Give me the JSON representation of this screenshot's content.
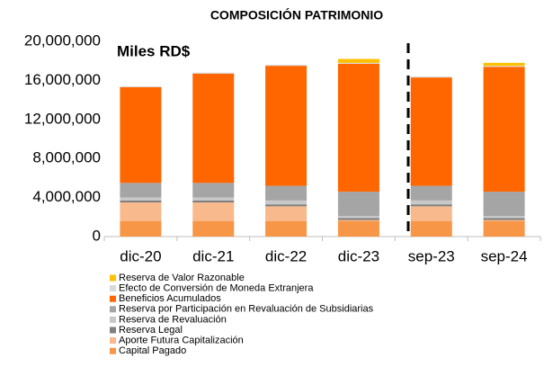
{
  "chart_data": {
    "type": "stacked_bar",
    "title": "COMPOSICIÓN PATRIMONIO",
    "annotation": "Miles RD$",
    "categories": [
      "dic-20",
      "dic-21",
      "dic-22",
      "dic-23",
      "sep-23",
      "sep-24"
    ],
    "series": [
      {
        "name": "Capital Pagado",
        "color": "#f79646",
        "values": [
          1600000,
          1600000,
          1600000,
          1600000,
          1600000,
          1600000
        ]
      },
      {
        "name": "Aporte Futura Capitalización",
        "color": "#f8b98c",
        "values": [
          1900000,
          1900000,
          1500000,
          100000,
          1500000,
          100000
        ]
      },
      {
        "name": "Reserva Legal",
        "color": "#7f7f7f",
        "values": [
          200000,
          200000,
          200000,
          200000,
          200000,
          200000
        ]
      },
      {
        "name": "Reserva de Revaluación",
        "color": "#c8c8c8",
        "values": [
          300000,
          300000,
          400000,
          200000,
          400000,
          200000
        ]
      },
      {
        "name": "Reserva por Participación en Revaluación de Subsidiarias",
        "color": "#a5a5a5",
        "values": [
          1500000,
          1500000,
          1500000,
          2500000,
          1500000,
          2500000
        ]
      },
      {
        "name": "Beneficios Acumulados",
        "color": "#ff6600",
        "values": [
          9800000,
          11200000,
          12300000,
          13100000,
          11100000,
          12800000
        ]
      },
      {
        "name": "Efecto de Conversión de Moneda Extranjera",
        "color": "#d9d9d9",
        "values": [
          100000,
          100000,
          100000,
          100000,
          100000,
          100000
        ]
      },
      {
        "name": "Reserva de Valor Razonable",
        "color": "#ffc000",
        "values": [
          0,
          0,
          0,
          400000,
          0,
          300000
        ]
      }
    ],
    "ylim": [
      0,
      20000000
    ],
    "yticks": [
      0,
      {
        "value": 4000000,
        "label": "4,000,000"
      },
      {
        "value": 8000000,
        "label": "8,000,000"
      },
      {
        "value": 12000000,
        "label": "12,000,000"
      },
      {
        "value": 16000000,
        "label": "16,000,000"
      },
      {
        "value": 20000000,
        "label": "20,000,000"
      }
    ],
    "grid": false
  }
}
